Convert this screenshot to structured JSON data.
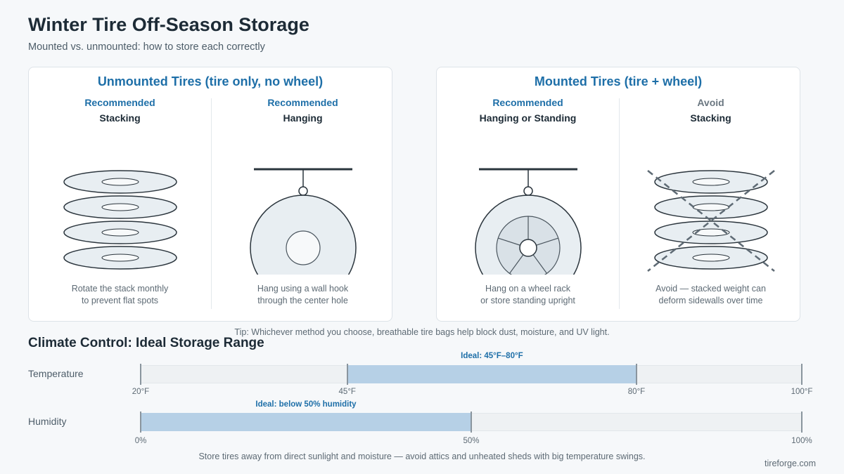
{
  "header": {
    "title": "Winter Tire Off-Season Storage",
    "subtitle": "Mounted vs. unmounted: how to store each correctly"
  },
  "panels": [
    {
      "title": "Unmounted Tires (tire only, no wheel)",
      "methods": [
        {
          "status": "Recommended",
          "method": "Stacking",
          "caption_lines": [
            "Rotate the stack monthly",
            "to prevent flat spots"
          ]
        },
        {
          "status": "Recommended",
          "method": "Hanging",
          "caption_lines": [
            "Hang using a wall hook",
            "through the center hole"
          ]
        }
      ]
    },
    {
      "title": "Mounted Tires (tire + wheel)",
      "methods": [
        {
          "status": "Recommended",
          "method": "Hanging or Standing",
          "caption_lines": [
            "Hang on a wheel rack",
            "or store standing upright"
          ]
        },
        {
          "status": "Avoid",
          "method": "Stacking",
          "caption_lines": [
            "Avoid — stacked weight can",
            "deform sidewalls over time"
          ]
        }
      ]
    }
  ],
  "tip": "Tip: Whichever method you choose, breathable tire bags help block dust, moisture, and UV light.",
  "climate": {
    "title": "Climate Control: Ideal Storage Range",
    "temperature": {
      "label": "Temperature",
      "range": [
        20,
        100
      ],
      "ideal": [
        45,
        80
      ],
      "ideal_label": "Ideal: 45°F–80°F",
      "ticks": [
        {
          "value": 20,
          "label": "20°F"
        },
        {
          "value": 45,
          "label": "45°F"
        },
        {
          "value": 80,
          "label": "80°F"
        },
        {
          "value": 100,
          "label": "100°F"
        }
      ]
    },
    "humidity": {
      "label": "Humidity",
      "range": [
        0,
        100
      ],
      "ideal": [
        0,
        50
      ],
      "ideal_label": "Ideal: below 50% humidity",
      "ticks": [
        {
          "value": 0,
          "label": "0%"
        },
        {
          "value": 50,
          "label": "50%"
        },
        {
          "value": 100,
          "label": "100%"
        }
      ]
    }
  },
  "footnote": "Store tires away from direct sunlight and moisture — avoid attics and unheated sheds with big temperature swings.",
  "brand": "tireforge.com"
}
